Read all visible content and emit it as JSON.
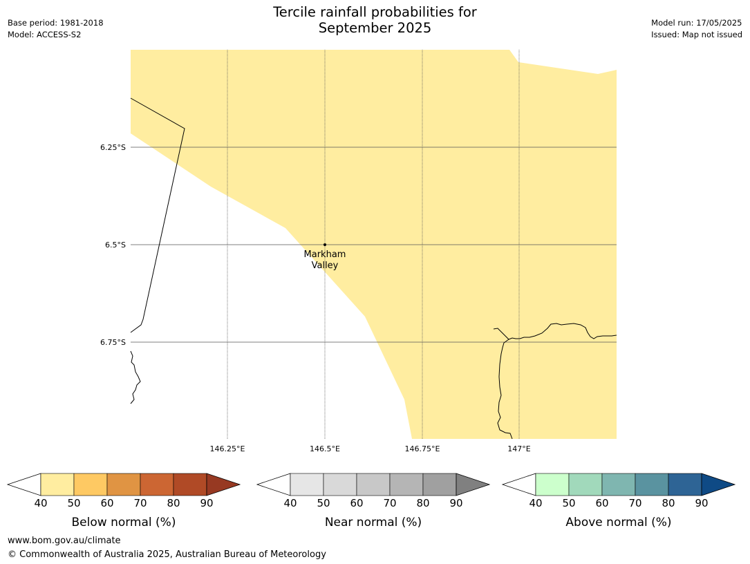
{
  "header": {
    "title_line1": "Tercile rainfall probabilities for",
    "title_line2": "September 2025",
    "base_period": "Base period: 1981-2018",
    "model": "Model: ACCESS-S2",
    "model_run": "Model run: 17/05/2025",
    "issued": "Issued: Map not issued"
  },
  "map": {
    "lat_labels": [
      "6.25°S",
      "6.5°S",
      "6.75°S"
    ],
    "lon_labels": [
      "146.25°E",
      "146.5°E",
      "146.75°E",
      "147°E"
    ],
    "place": {
      "name_line1": "Markham",
      "name_line2": "Valley",
      "lat": -6.5,
      "lon": 146.5
    },
    "shading_color": "#ffeda0",
    "shading_category": "Below normal 40-50%"
  },
  "legends": [
    {
      "label": "Below normal (%)",
      "ticks": [
        "40",
        "50",
        "60",
        "70",
        "80",
        "90"
      ],
      "colors": [
        "#ffeda0",
        "#fec963",
        "#e09443",
        "#cc6633",
        "#b04a26"
      ],
      "end_color": "#973922"
    },
    {
      "label": "Near normal (%)",
      "ticks": [
        "40",
        "50",
        "60",
        "70",
        "80",
        "90"
      ],
      "colors": [
        "#e6e6e6",
        "#d9d9d9",
        "#c8c8c8",
        "#b5b5b5",
        "#a0a0a0"
      ],
      "end_color": "#808080"
    },
    {
      "label": "Above normal (%)",
      "ticks": [
        "40",
        "50",
        "60",
        "70",
        "80",
        "90"
      ],
      "colors": [
        "#ccffcc",
        "#a1d9bb",
        "#7fb6b0",
        "#5a93a0",
        "#2e6495"
      ],
      "end_color": "#0f4a85"
    }
  ],
  "footer": {
    "url": "www.bom.gov.au/climate",
    "copyright": "© Commonwealth of Australia 2025, Australian Bureau of Meteorology"
  }
}
